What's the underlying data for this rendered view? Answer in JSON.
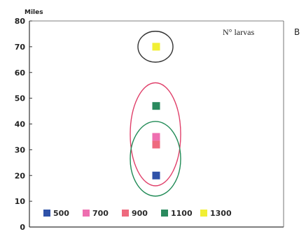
{
  "chart_data": {
    "type": "scatter",
    "y_unit_label": "Miles",
    "in_plot_label": "N° larvas",
    "panel_label": "B",
    "ylim": [
      0,
      80
    ],
    "y_ticks": [
      "0",
      "10",
      "20",
      "30",
      "40",
      "50",
      "60",
      "70",
      "80"
    ],
    "grid": false,
    "legend_position": "bottom",
    "series": [
      {
        "name": "500",
        "color": "#2f52a8",
        "y": 20
      },
      {
        "name": "700",
        "color": "#ee6fb0",
        "y": 35
      },
      {
        "name": "900",
        "color": "#ee6a7e",
        "y": 32
      },
      {
        "name": "1100",
        "color": "#2a8a5e",
        "y": 47
      },
      {
        "name": "1300",
        "color": "#f1ef34",
        "y": 70
      }
    ],
    "ellipses": [
      {
        "cy": 70,
        "ry": 6,
        "color": "#333333"
      },
      {
        "cy": 36,
        "ry": 20,
        "color": "#e0406a"
      },
      {
        "cy": 26.5,
        "ry": 14.5,
        "color": "#1f8a55"
      }
    ]
  }
}
